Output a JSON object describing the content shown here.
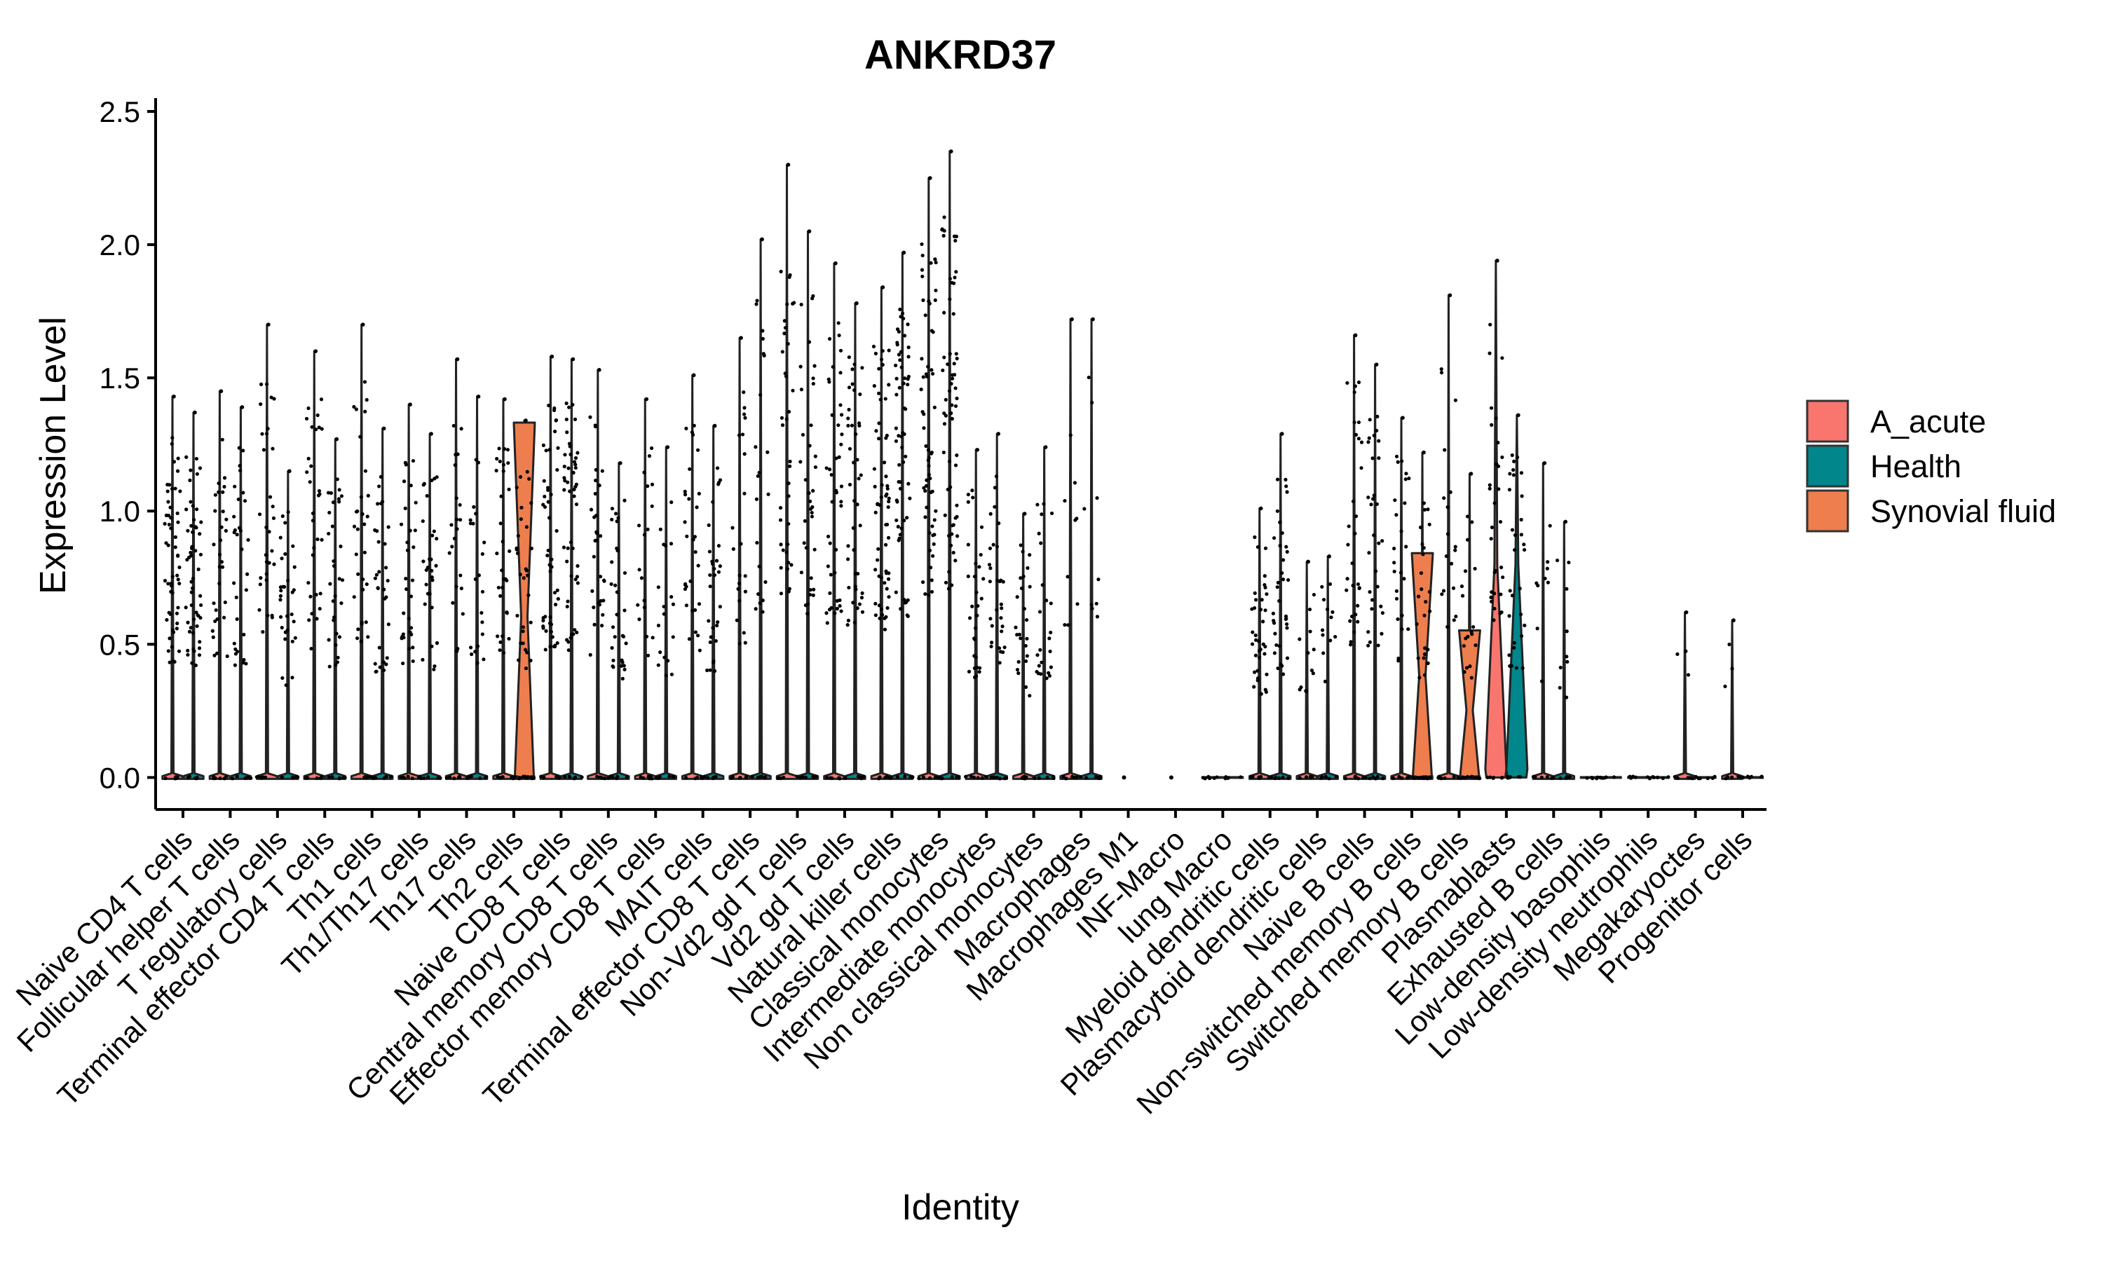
{
  "chart_data": {
    "type": "violin",
    "title": "ANKRD37",
    "xlabel": "Identity",
    "ylabel": "Expression Level",
    "ylim": [
      -0.12,
      2.55
    ],
    "yticks": [
      "0.0",
      "0.5",
      "1.0",
      "1.5",
      "2.0",
      "2.5"
    ],
    "yticks_values": [
      0,
      0.5,
      1.0,
      1.5,
      2.0,
      2.5
    ],
    "grid": false,
    "legend_position": "right",
    "categories": [
      "Naive CD4 T cells",
      "Follicular helper T cells",
      "T regulatory cells",
      "Terminal effector CD4 T cells",
      "Th1 cells",
      "Th1/Th17 cells",
      "Th17 cells",
      "Th2 cells",
      "Naive CD8 T cells",
      "Central memory CD8 T cells",
      "Effector memory CD8 T cells",
      "MAIT cells",
      "Terminal effector CD8 T cells",
      "Non-Vd2 gd T cells",
      "Vd2 gd T cells",
      "Natural killer cells",
      "Classical monocytes",
      "Intermediate monocytes",
      "Non classical monocytes",
      "Macrophages",
      "Macrophages M1",
      "INF-Macro",
      "lung Macro",
      "Myeloid dendritic cells",
      "Plasmacytoid dendritic cells",
      "Naive B cells",
      "Non-switched memory B cells",
      "Switched memory B cells",
      "Plasmablasts",
      "Exhausted B cells",
      "Low-density basophils",
      "Low-density neutrophils",
      "Megakaryoctes",
      "Progenitor cells"
    ],
    "series": [
      {
        "name": "A_acute",
        "color": "#F8766D",
        "max": [
          1.43,
          1.45,
          1.7,
          1.6,
          1.7,
          1.4,
          1.57,
          1.42,
          1.58,
          1.53,
          1.42,
          1.51,
          1.65,
          2.3,
          1.93,
          1.84,
          2.25,
          1.23,
          0.99,
          1.72,
          null,
          null,
          0,
          1.01,
          0.81,
          1.66,
          1.35,
          1.81,
          1.94,
          1.18,
          0,
          0,
          0.62,
          0.59
        ]
      },
      {
        "name": "Health",
        "color": "#00868B",
        "max": [
          1.37,
          1.39,
          1.15,
          1.27,
          1.31,
          1.29,
          1.43,
          1.34,
          1.57,
          1.18,
          1.24,
          1.32,
          2.02,
          2.05,
          1.78,
          1.97,
          2.35,
          1.29,
          1.24,
          1.72,
          null,
          null,
          0,
          1.29,
          0.83,
          1.55,
          1.22,
          1.14,
          1.36,
          0.96,
          0,
          0,
          0,
          0
        ]
      },
      {
        "name": "Synovial fluid",
        "color": "#EE7E4D",
        "max": [
          null,
          null,
          null,
          null,
          null,
          null,
          null,
          1.34,
          null,
          null,
          null,
          null,
          null,
          null,
          null,
          null,
          null,
          null,
          null,
          null,
          null,
          null,
          null,
          null,
          null,
          null,
          0.85,
          0.56,
          null,
          null,
          null,
          null,
          null,
          null
        ]
      }
    ],
    "point_density": [
      0.9,
      0.5,
      0.5,
      0.5,
      0.5,
      0.5,
      0.35,
      0.5,
      0.8,
      0.5,
      0.3,
      0.5,
      0.35,
      0.6,
      0.7,
      1.0,
      1.0,
      0.5,
      0.4,
      0.15,
      0,
      0,
      0,
      0.6,
      0.2,
      0.5,
      0.4,
      0.3,
      0.5,
      0.15,
      0,
      0,
      0.05,
      0.05
    ]
  }
}
